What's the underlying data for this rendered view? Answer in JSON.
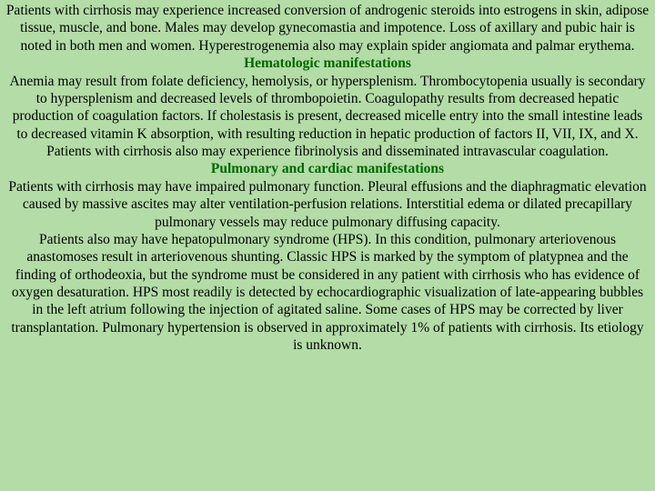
{
  "background_color": "#b3dca7",
  "text_color": "#000000",
  "heading_color": "#006600",
  "font_family": "Times New Roman",
  "font_size_pt": 12,
  "paragraphs": {
    "intro": "Patients with cirrhosis may experience increased conversion of androgenic steroids into estrogens in skin, adipose tissue, muscle, and bone. Males may develop gynecomastia and impotence. Loss of axillary and pubic hair is noted in both men and women. Hyperestrogenemia also may explain spider angiomata and palmar erythema.",
    "heading1": "Hematologic manifestations",
    "hematologic": "Anemia may result from folate deficiency, hemolysis, or hypersplenism. Thrombocytopenia usually is secondary to hypersplenism and decreased levels of thrombopoietin. Coagulopathy results from decreased hepatic production of coagulation factors. If cholestasis is present, decreased micelle entry into the small intestine leads to decreased vitamin K absorption, with resulting reduction in hepatic production of factors II, VII, IX, and X. Patients with cirrhosis also may experience fibrinolysis and disseminated intravascular coagulation.",
    "heading2": "Pulmonary and cardiac manifestations",
    "pulmonary1": "Patients with cirrhosis may have impaired pulmonary function. Pleural effusions and the diaphragmatic elevation caused by massive ascites may alter ventilation-perfusion relations. Interstitial edema or dilated precapillary pulmonary vessels may reduce pulmonary diffusing capacity.",
    "pulmonary2": "Patients also may have hepatopulmonary syndrome (HPS). In this condition, pulmonary arteriovenous anastomoses result in arteriovenous shunting. Classic HPS is marked by the symptom of platypnea and the finding of orthodeoxia, but the syndrome must be considered in any patient with cirrhosis who has evidence of oxygen desaturation. HPS most readily is detected by echocardiographic visualization of late-appearing bubbles in the left atrium following the injection of agitated saline. Some cases of HPS may be corrected by liver transplantation. Pulmonary hypertension is observed in approximately 1% of patients with cirrhosis. Its etiology is unknown."
  }
}
